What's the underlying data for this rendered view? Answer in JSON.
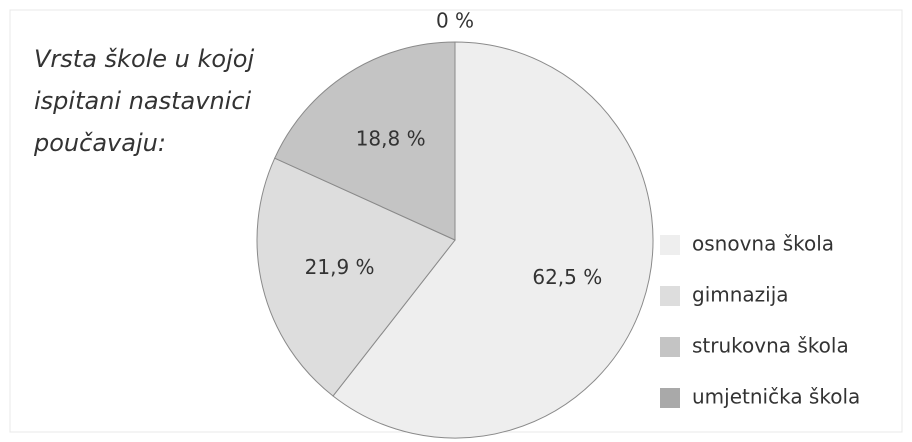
{
  "chart_data": {
    "type": "pie",
    "title": [
      "Vrsta škole u kojoj",
      "ispitani nastavnici",
      "poučavaju:"
    ],
    "categories": [
      "osnovna škola",
      "gimnazija",
      "strukovna škola",
      "umjetnička škola"
    ],
    "values": [
      62.5,
      21.9,
      18.8,
      0
    ],
    "value_labels": [
      "62,5 %",
      "21,9 %",
      "18,8 %",
      "0 %"
    ],
    "colors": [
      "#eeeeee",
      "#dddddd",
      "#c4c4c4",
      "#a9a9a9"
    ],
    "legend": "right"
  }
}
